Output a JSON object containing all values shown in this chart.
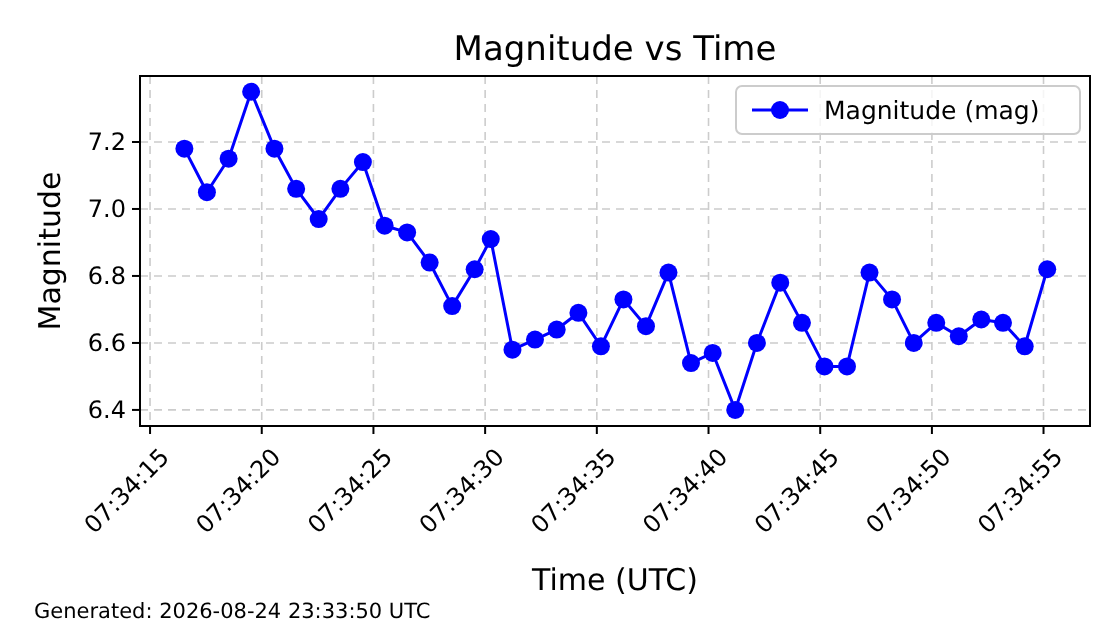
{
  "chart_data": {
    "type": "line",
    "title": "Magnitude vs Time",
    "xlabel": "Time (UTC)",
    "ylabel": "Magnitude",
    "x": [
      7.57126,
      7.57154,
      7.57181,
      7.57209,
      7.57238,
      7.57265,
      7.57293,
      7.5732,
      7.57348,
      7.57375,
      7.57403,
      7.57431,
      7.57459,
      7.57487,
      7.57507,
      7.57534,
      7.57562,
      7.57589,
      7.57616,
      7.57644,
      7.57672,
      7.577,
      7.57728,
      7.57756,
      7.57783,
      7.57811,
      7.57838,
      7.57867,
      7.57894,
      7.57922,
      7.5795,
      7.57978,
      7.58006,
      7.58033,
      7.58061,
      7.58089,
      7.58117,
      7.58144,
      7.58171,
      7.58199
    ],
    "series": [
      {
        "name": "Magnitude (mag)",
        "color": "#0000ff",
        "values": [
          7.18,
          7.05,
          7.15,
          7.35,
          7.18,
          7.06,
          6.97,
          7.06,
          7.14,
          6.95,
          6.93,
          6.84,
          6.71,
          6.82,
          6.91,
          6.58,
          6.61,
          6.64,
          6.69,
          6.59,
          6.73,
          6.65,
          6.81,
          6.54,
          6.57,
          6.4,
          6.6,
          6.78,
          6.66,
          6.53,
          6.53,
          6.81,
          6.73,
          6.6,
          6.66,
          6.62,
          6.67,
          6.66,
          6.59,
          6.82
        ]
      }
    ],
    "xlim": [
      7.570708,
      7.582522
    ],
    "xticks": [
      {
        "value": 7.570833,
        "label": "07:34:15"
      },
      {
        "value": 7.572222,
        "label": "07:34:20"
      },
      {
        "value": 7.573611,
        "label": "07:34:25"
      },
      {
        "value": 7.575,
        "label": "07:34:30"
      },
      {
        "value": 7.576389,
        "label": "07:34:35"
      },
      {
        "value": 7.577778,
        "label": "07:34:40"
      },
      {
        "value": 7.579167,
        "label": "07:34:45"
      },
      {
        "value": 7.580556,
        "label": "07:34:50"
      },
      {
        "value": 7.581944,
        "label": "07:34:55"
      }
    ],
    "ylim": [
      6.352,
      7.397
    ],
    "yticks": [
      {
        "value": 6.4,
        "label": "6.4"
      },
      {
        "value": 6.6,
        "label": "6.6"
      },
      {
        "value": 6.8,
        "label": "6.8"
      },
      {
        "value": 7.0,
        "label": "7.0"
      },
      {
        "value": 7.2,
        "label": "7.2"
      }
    ],
    "grid": true,
    "legend": "top right",
    "marker": "circle",
    "line_style": "solid",
    "annotations": [
      "Generated: 2026-08-24 23:33:50 UTC"
    ]
  }
}
